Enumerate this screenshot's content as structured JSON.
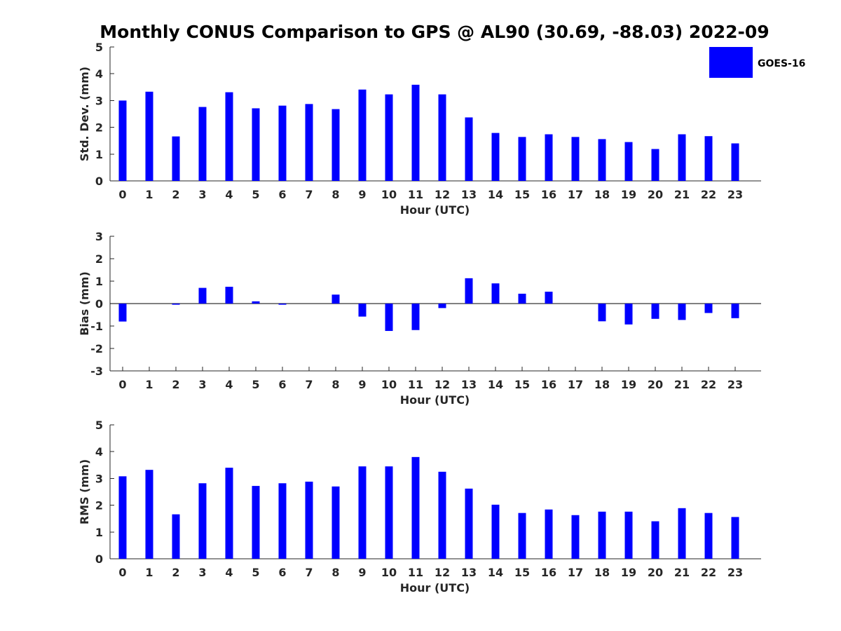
{
  "figure": {
    "title": "Monthly CONUS Comparison to GPS @ AL90 (30.69, -88.03) 2022-09",
    "legend": {
      "label": "GOES-16",
      "color": "#0000ff",
      "placement": "top-right"
    }
  },
  "chart_data": [
    {
      "type": "bar",
      "name": "std",
      "xlabel": "Hour (UTC)",
      "ylabel": "Std. Dev. (mm)",
      "ylim": [
        0,
        5
      ],
      "yticks": [
        0,
        1,
        2,
        3,
        4,
        5
      ],
      "categories": [
        "0",
        "1",
        "2",
        "3",
        "4",
        "5",
        "6",
        "7",
        "8",
        "9",
        "10",
        "11",
        "12",
        "13",
        "14",
        "15",
        "16",
        "17",
        "18",
        "19",
        "20",
        "21",
        "22",
        "23"
      ],
      "series": [
        {
          "name": "GOES-16",
          "color": "#0000ff",
          "values": [
            3.0,
            3.33,
            1.66,
            2.76,
            3.31,
            2.71,
            2.81,
            2.87,
            2.68,
            3.41,
            3.23,
            3.59,
            3.23,
            2.37,
            1.79,
            1.64,
            1.74,
            1.64,
            1.56,
            1.45,
            1.19,
            1.74,
            1.67,
            1.4
          ]
        }
      ],
      "grid": false
    },
    {
      "type": "bar",
      "name": "bias",
      "xlabel": "Hour (UTC)",
      "ylabel": "Bias (mm)",
      "ylim": [
        -3,
        3
      ],
      "yticks": [
        -3,
        -2,
        -1,
        0,
        1,
        2,
        3
      ],
      "categories": [
        "0",
        "1",
        "2",
        "3",
        "4",
        "5",
        "6",
        "7",
        "8",
        "9",
        "10",
        "11",
        "12",
        "13",
        "14",
        "15",
        "16",
        "17",
        "18",
        "19",
        "20",
        "21",
        "22",
        "23"
      ],
      "series": [
        {
          "name": "GOES-16",
          "color": "#0000ff",
          "values": [
            -0.8,
            0.0,
            -0.05,
            0.7,
            0.75,
            0.1,
            -0.05,
            0.0,
            0.4,
            -0.58,
            -1.22,
            -1.18,
            -0.2,
            1.13,
            0.9,
            0.44,
            0.53,
            0.0,
            -0.79,
            -0.93,
            -0.68,
            -0.73,
            -0.42,
            -0.65
          ]
        }
      ],
      "grid": false
    },
    {
      "type": "bar",
      "name": "rms",
      "xlabel": "Hour (UTC)",
      "ylabel": "RMS (mm)",
      "ylim": [
        0,
        5
      ],
      "yticks": [
        0,
        1,
        2,
        3,
        4,
        5
      ],
      "categories": [
        "0",
        "1",
        "2",
        "3",
        "4",
        "5",
        "6",
        "7",
        "8",
        "9",
        "10",
        "11",
        "12",
        "13",
        "14",
        "15",
        "16",
        "17",
        "18",
        "19",
        "20",
        "21",
        "22",
        "23"
      ],
      "series": [
        {
          "name": "GOES-16",
          "color": "#0000ff",
          "values": [
            3.08,
            3.32,
            1.66,
            2.82,
            3.4,
            2.72,
            2.82,
            2.88,
            2.7,
            3.45,
            3.45,
            3.8,
            3.25,
            2.62,
            2.02,
            1.71,
            1.84,
            1.63,
            1.76,
            1.76,
            1.4,
            1.89,
            1.71,
            1.56
          ]
        }
      ],
      "grid": false
    }
  ]
}
